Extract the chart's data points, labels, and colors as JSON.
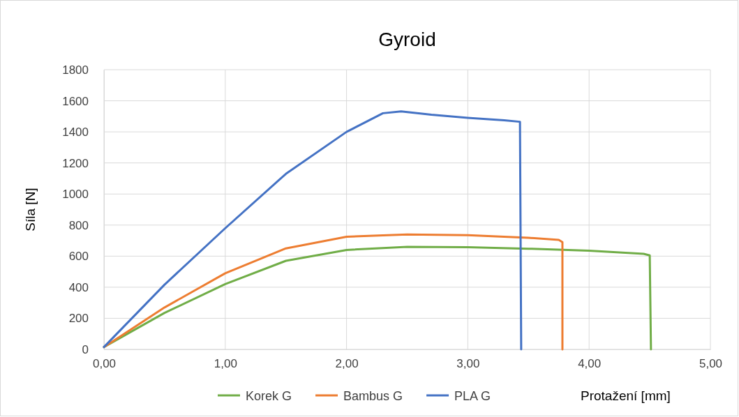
{
  "chart_data": {
    "type": "line",
    "title": "Gyroid",
    "xlabel": "Protažení [mm]",
    "ylabel": "Síla [N]",
    "xlim": [
      0,
      5
    ],
    "xticks": [
      {
        "value": 0,
        "label": "0,00"
      },
      {
        "value": 1,
        "label": "1,00"
      },
      {
        "value": 2,
        "label": "2,00"
      },
      {
        "value": 3,
        "label": "3,00"
      },
      {
        "value": 4,
        "label": "4,00"
      },
      {
        "value": 5,
        "label": "5,00"
      }
    ],
    "ylim": [
      0,
      1800
    ],
    "yticks": [
      0,
      200,
      400,
      600,
      800,
      1000,
      1200,
      1400,
      1600,
      1800
    ],
    "grid": true,
    "legend": "bottom",
    "marker": "none",
    "line_style": "solid",
    "series": [
      {
        "name": "Korek G",
        "color": "#70ad47",
        "x": [
          0,
          0.5,
          1.0,
          1.5,
          2.0,
          2.5,
          3.0,
          3.5,
          4.0,
          4.45,
          4.5,
          4.51
        ],
        "values": [
          15,
          235,
          420,
          570,
          640,
          660,
          658,
          648,
          635,
          615,
          605,
          0
        ]
      },
      {
        "name": "Bambus G",
        "color": "#ed7d31",
        "x": [
          0,
          0.5,
          1.0,
          1.5,
          2.0,
          2.5,
          3.0,
          3.5,
          3.75,
          3.78,
          3.78
        ],
        "values": [
          15,
          270,
          490,
          650,
          725,
          740,
          735,
          718,
          705,
          690,
          0
        ]
      },
      {
        "name": "PLA G",
        "color": "#4472c4",
        "x": [
          0,
          0.5,
          1.0,
          1.5,
          2.0,
          2.3,
          2.45,
          2.7,
          3.0,
          3.3,
          3.43,
          3.44
        ],
        "values": [
          15,
          417,
          780,
          1130,
          1400,
          1520,
          1532,
          1510,
          1490,
          1475,
          1465,
          0
        ]
      }
    ]
  }
}
